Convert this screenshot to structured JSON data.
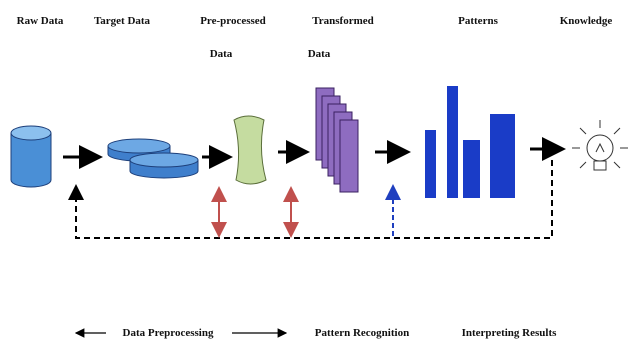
{
  "stages": [
    {
      "label_lines": [
        "Raw Data"
      ]
    },
    {
      "label_lines": [
        "Target Data"
      ]
    },
    {
      "label_lines": [
        "Pre-processed",
        "Data"
      ]
    },
    {
      "label_lines": [
        "Transformed",
        "Data"
      ]
    },
    {
      "label_lines": [
        "Patterns"
      ]
    },
    {
      "label_lines": [
        "Knowledge"
      ]
    }
  ],
  "phases": [
    "Data Preprocessing",
    "Pattern Recognition",
    "Interpreting Results"
  ]
}
